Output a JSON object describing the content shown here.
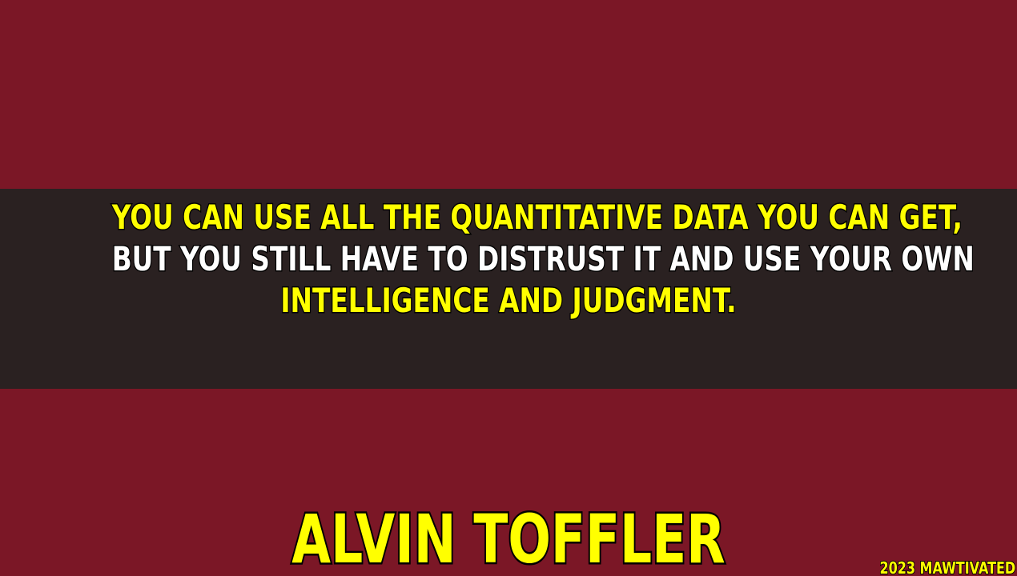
{
  "quote": {
    "line1": "YOU CAN USE ALL THE QUANTITATIVE DATA YOU CAN GET,",
    "line2": "BUT YOU STILL HAVE TO DISTRUST IT AND USE YOUR OWN",
    "line3": "INTELLIGENCE AND JUDGMENT."
  },
  "author": "ALVIN TOFFLER",
  "credit": "2023 MAWTIVATED",
  "colors": {
    "background": "#7b1726",
    "band": "#2a2121",
    "accent_yellow": "#ffff00",
    "text_white": "#ffffff"
  }
}
